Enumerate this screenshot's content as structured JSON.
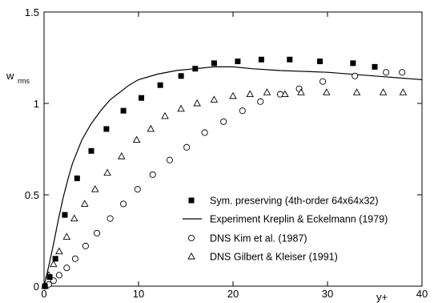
{
  "chart_data": {
    "type": "scatter",
    "title": "",
    "xlabel": "y+",
    "ylabel": "w",
    "ylabel_sub": "rms",
    "xlim": [
      0,
      40
    ],
    "ylim": [
      0,
      1.5
    ],
    "xticks": [
      0,
      10,
      20,
      30,
      40
    ],
    "xtick_labels": [
      "0",
      "10",
      "20",
      "30",
      "40"
    ],
    "yticks": [
      0,
      0.5,
      1,
      1.5
    ],
    "ytick_labels": [
      "0",
      "0.5",
      "1",
      "1.5"
    ],
    "grid": false,
    "legend_position": "lower-right",
    "series": [
      {
        "name": "Sym. preserving  (4th-order 64x64x32)",
        "kind": "marker",
        "marker": "square-filled",
        "x": [
          0.1,
          0.6,
          1.2,
          2.2,
          3.5,
          5.0,
          6.6,
          8.4,
          10.3,
          12.3,
          14.5,
          16.0,
          18.0,
          20.5,
          23.0,
          26.0,
          29.2,
          32.7,
          35.0
        ],
        "y": [
          0.0,
          0.05,
          0.15,
          0.39,
          0.59,
          0.74,
          0.86,
          0.96,
          1.03,
          1.1,
          1.15,
          1.19,
          1.22,
          1.23,
          1.24,
          1.24,
          1.23,
          1.22,
          1.2
        ]
      },
      {
        "name": "Experiment Kreplin & Eckelmann (1979)",
        "kind": "line",
        "x": [
          0,
          0.5,
          1.0,
          1.5,
          2.0,
          2.5,
          3.0,
          4.0,
          5.0,
          6.0,
          7.0,
          8.0,
          9.0,
          10.0,
          12.0,
          14.0,
          16.0,
          18.0,
          20.0,
          22.0,
          25.0,
          30.0,
          35.0,
          40.0
        ],
        "y": [
          0.0,
          0.11,
          0.23,
          0.36,
          0.48,
          0.58,
          0.67,
          0.8,
          0.89,
          0.96,
          1.02,
          1.06,
          1.1,
          1.13,
          1.16,
          1.18,
          1.19,
          1.2,
          1.2,
          1.19,
          1.18,
          1.17,
          1.15,
          1.13
        ]
      },
      {
        "name": "DNS Kim et al. (1987)",
        "kind": "marker",
        "marker": "circle-open",
        "x": [
          0.1,
          0.5,
          1.0,
          1.6,
          2.4,
          3.3,
          4.4,
          5.6,
          7.0,
          8.4,
          9.9,
          11.5,
          13.3,
          15.1,
          17.0,
          19.0,
          21.0,
          22.9,
          25.0,
          27.0,
          29.5,
          32.9,
          36.2,
          37.9
        ],
        "y": [
          0.0,
          0.01,
          0.03,
          0.06,
          0.1,
          0.15,
          0.22,
          0.29,
          0.37,
          0.45,
          0.53,
          0.61,
          0.69,
          0.76,
          0.84,
          0.9,
          0.96,
          1.01,
          1.05,
          1.08,
          1.12,
          1.15,
          1.17,
          1.17
        ]
      },
      {
        "name": "DNS Gilbert & Kleiser (1991)",
        "kind": "marker",
        "marker": "triangle-open",
        "x": [
          0.1,
          0.5,
          1.0,
          1.6,
          2.4,
          3.2,
          4.3,
          5.4,
          6.7,
          8.2,
          9.8,
          11.3,
          12.8,
          14.5,
          16.2,
          18.0,
          20.0,
          21.8,
          23.6,
          25.5,
          27.2,
          29.9,
          33.1,
          35.9,
          38.0
        ],
        "y": [
          0.0,
          0.06,
          0.12,
          0.19,
          0.27,
          0.37,
          0.45,
          0.53,
          0.62,
          0.71,
          0.8,
          0.86,
          0.93,
          0.97,
          1.0,
          1.02,
          1.04,
          1.05,
          1.06,
          1.05,
          1.06,
          1.06,
          1.06,
          1.06,
          1.06
        ]
      }
    ]
  }
}
